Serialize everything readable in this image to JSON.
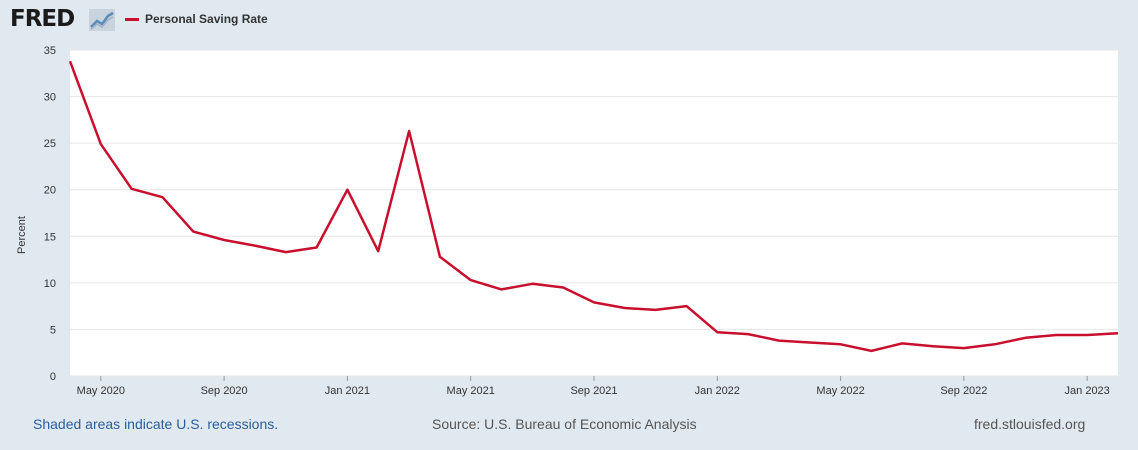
{
  "header": {
    "logo_text": "FRED",
    "logo_icon": "trend-line-icon"
  },
  "colors": {
    "series": "#c8102e",
    "plot_background": "#ffffff",
    "page_background": "#e1e9f0",
    "grid": "#e6e6e6",
    "link": "#2a5d9d"
  },
  "footer": {
    "recessions_note": "Shaded areas indicate U.S. recessions.",
    "source": "Source: U.S. Bureau of Economic Analysis",
    "site": "fred.stlouisfed.org"
  },
  "chart_data": {
    "type": "line",
    "title": "",
    "xlabel": "",
    "ylabel": "Percent",
    "ylim": [
      0,
      35
    ],
    "xlim": [
      "2020-04",
      "2023-02"
    ],
    "yticks": [
      0,
      5,
      10,
      15,
      20,
      25,
      30,
      35
    ],
    "xticks": [
      {
        "label": "May 2020",
        "date": "2020-05"
      },
      {
        "label": "Sep 2020",
        "date": "2020-09"
      },
      {
        "label": "Jan 2021",
        "date": "2021-01"
      },
      {
        "label": "May 2021",
        "date": "2021-05"
      },
      {
        "label": "Sep 2021",
        "date": "2021-09"
      },
      {
        "label": "Jan 2022",
        "date": "2022-01"
      },
      {
        "label": "May 2022",
        "date": "2022-05"
      },
      {
        "label": "Sep 2022",
        "date": "2022-09"
      },
      {
        "label": "Jan 2023",
        "date": "2023-01"
      }
    ],
    "grid": true,
    "legend_position": "top-left",
    "series": [
      {
        "name": "Personal Saving Rate",
        "color": "#c8102e",
        "x": [
          "2020-04",
          "2020-05",
          "2020-06",
          "2020-07",
          "2020-08",
          "2020-09",
          "2020-10",
          "2020-11",
          "2020-12",
          "2021-01",
          "2021-02",
          "2021-03",
          "2021-04",
          "2021-05",
          "2021-06",
          "2021-07",
          "2021-08",
          "2021-09",
          "2021-10",
          "2021-11",
          "2021-12",
          "2022-01",
          "2022-02",
          "2022-03",
          "2022-04",
          "2022-05",
          "2022-06",
          "2022-07",
          "2022-08",
          "2022-09",
          "2022-10",
          "2022-11",
          "2022-12",
          "2023-01",
          "2023-02"
        ],
        "values": [
          33.8,
          24.9,
          20.1,
          19.2,
          15.5,
          14.6,
          14.0,
          13.3,
          13.8,
          20.0,
          13.4,
          26.3,
          12.8,
          10.3,
          9.3,
          9.9,
          9.5,
          7.9,
          7.3,
          7.1,
          7.5,
          4.7,
          4.5,
          3.8,
          3.6,
          3.4,
          2.7,
          3.5,
          3.2,
          3.0,
          3.4,
          4.1,
          4.4,
          4.4,
          4.6
        ]
      }
    ]
  }
}
